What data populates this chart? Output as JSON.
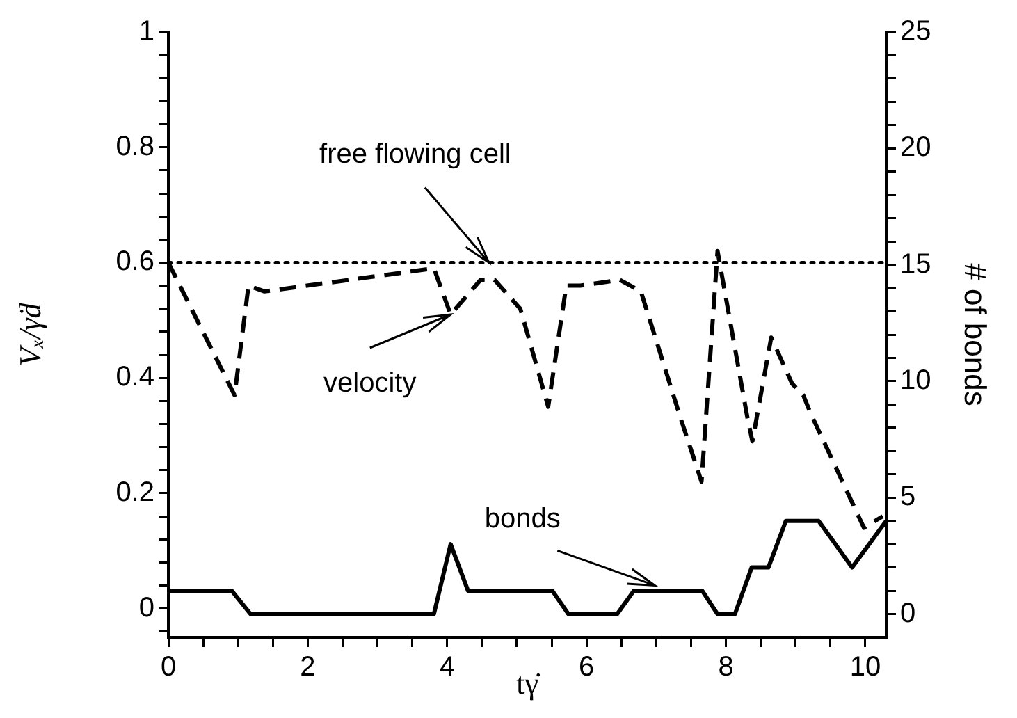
{
  "chart_data": {
    "type": "line",
    "xlabel": "tγ̇",
    "ylabel": "Vₓ/γ̇d",
    "y2label": "# of bonds",
    "xlim": [
      0,
      10.3
    ],
    "ylim": [
      -0.05,
      1
    ],
    "y2lim": [
      -1,
      25
    ],
    "xticks": [
      0,
      {
        "value": 0.5,
        "label": null
      },
      {
        "value": 1,
        "label": null
      },
      {
        "value": 1.5,
        "label": null
      },
      2,
      {
        "value": 2.5,
        "label": null
      },
      {
        "value": 3,
        "label": null
      },
      {
        "value": 3.5,
        "label": null
      },
      4,
      {
        "value": 4.5,
        "label": null
      },
      {
        "value": 5,
        "label": null
      },
      {
        "value": 5.5,
        "label": null
      },
      6,
      {
        "value": 6.5,
        "label": null
      },
      {
        "value": 7,
        "label": null
      },
      {
        "value": 7.5,
        "label": null
      },
      8,
      {
        "value": 8.5,
        "label": null
      },
      {
        "value": 9,
        "label": null
      },
      {
        "value": 9.5,
        "label": null
      },
      10
    ],
    "yticks": [
      {
        "value": -0.04,
        "label": null
      },
      0,
      {
        "value": 0.04,
        "label": null
      },
      {
        "value": 0.08,
        "label": null
      },
      {
        "value": 0.12,
        "label": null
      },
      {
        "value": 0.16,
        "label": null
      },
      0.2,
      {
        "value": 0.24,
        "label": null
      },
      {
        "value": 0.28,
        "label": null
      },
      {
        "value": 0.32,
        "label": null
      },
      {
        "value": 0.36,
        "label": null
      },
      0.4,
      {
        "value": 0.44,
        "label": null
      },
      {
        "value": 0.48,
        "label": null
      },
      {
        "value": 0.52,
        "label": null
      },
      {
        "value": 0.56,
        "label": null
      },
      0.6,
      {
        "value": 0.64,
        "label": null
      },
      {
        "value": 0.68,
        "label": null
      },
      {
        "value": 0.72,
        "label": null
      },
      {
        "value": 0.76,
        "label": null
      },
      0.8,
      {
        "value": 0.84,
        "label": null
      },
      {
        "value": 0.88,
        "label": null
      },
      {
        "value": 0.92,
        "label": null
      },
      {
        "value": 0.96,
        "label": null
      },
      1
    ],
    "y2ticks": [
      0,
      {
        "value": 1,
        "label": null
      },
      {
        "value": 2,
        "label": null
      },
      {
        "value": 3,
        "label": null
      },
      {
        "value": 4,
        "label": null
      },
      5,
      {
        "value": 6,
        "label": null
      },
      {
        "value": 7,
        "label": null
      },
      {
        "value": 8,
        "label": null
      },
      {
        "value": 9,
        "label": null
      },
      10,
      {
        "value": 11,
        "label": null
      },
      {
        "value": 12,
        "label": null
      },
      {
        "value": 13,
        "label": null
      },
      {
        "value": 14,
        "label": null
      },
      15,
      {
        "value": 16,
        "label": null
      },
      {
        "value": 17,
        "label": null
      },
      {
        "value": 18,
        "label": null
      },
      {
        "value": 19,
        "label": null
      },
      20,
      {
        "value": 21,
        "label": null
      },
      {
        "value": 22,
        "label": null
      },
      {
        "value": 23,
        "label": null
      },
      {
        "value": 24,
        "label": null
      },
      25
    ],
    "grid": false,
    "legend": false,
    "marker": "none",
    "series": [
      {
        "color": "#000000",
        "line_style": "dashed",
        "x": [
          0,
          0.95,
          1.15,
          1.38,
          3.81,
          4.05,
          4.48,
          4.68,
          5.05,
          5.45,
          5.71,
          5.91,
          6.48,
          6.78,
          7.35,
          7.65,
          7.88,
          8.31,
          8.38,
          8.65,
          8.95,
          9.11,
          9.21,
          9.98,
          10.25
        ],
        "values": [
          0.6,
          0.37,
          0.56,
          0.55,
          0.59,
          0.51,
          0.57,
          0.57,
          0.52,
          0.35,
          0.56,
          0.56,
          0.57,
          0.55,
          0.33,
          0.22,
          0.62,
          0.33,
          0.29,
          0.47,
          0.39,
          0.37,
          0.34,
          0.14,
          0.16
        ]
      },
      {
        "color": "#000000",
        "line_style": "solid",
        "axis": "y2",
        "x": [
          0,
          0.91,
          1.18,
          3.81,
          4.05,
          4.3,
          5.51,
          5.74,
          6.44,
          6.68,
          7.66,
          7.88,
          8.13,
          8.37,
          8.61,
          8.86,
          9.33,
          9.81,
          10.3
        ],
        "values": [
          1,
          1,
          0,
          0,
          3,
          1,
          1,
          0,
          0,
          1,
          1,
          0,
          0,
          2,
          2,
          4,
          4,
          2,
          4
        ]
      }
    ],
    "ref_lines": [
      {
        "axis": "y",
        "value": 0.6,
        "color": "#000000",
        "line_style": "dotted"
      }
    ],
    "annotations": [
      {
        "text": "free flowing cell",
        "x": 4.6,
        "y": 0.6
      },
      {
        "text": "velocity",
        "x": 4.05,
        "y": 0.51
      },
      {
        "text": "bonds",
        "x": 6.98,
        "y": 0.04
      }
    ]
  }
}
